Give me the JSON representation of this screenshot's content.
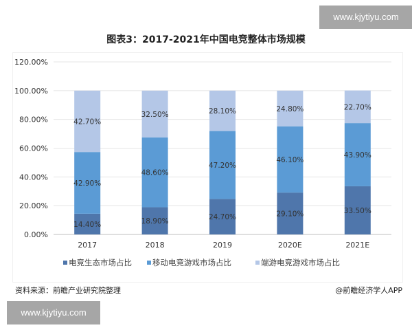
{
  "watermark_top": "www.kjytiyu.com",
  "watermark_bottom": "www.kjytiyu.com",
  "source": "资料来源：前瞻产业研究院整理",
  "credit": "@前瞻经济学人APP",
  "chart_data": {
    "type": "bar",
    "stacked": true,
    "title": "图表3：2017-2021年中国电竞整体市场规模",
    "categories": [
      "2017",
      "2018",
      "2019",
      "2020E",
      "2021E"
    ],
    "series": [
      {
        "name": "电竞生态市场占比",
        "values": [
          14.4,
          18.9,
          24.7,
          29.1,
          33.5
        ],
        "labels": [
          "14.40%",
          "18.90%",
          "24.70%",
          "29.10%",
          "33.50%"
        ],
        "color": "#4f76ab"
      },
      {
        "name": "移动电竞游戏市场占比",
        "values": [
          42.9,
          48.6,
          47.2,
          46.1,
          43.9
        ],
        "labels": [
          "42.90%",
          "48.60%",
          "47.20%",
          "46.10%",
          "43.90%"
        ],
        "color": "#5b9bd5"
      },
      {
        "name": "端游电竞游戏市场占比",
        "values": [
          42.7,
          32.5,
          28.1,
          24.8,
          22.7
        ],
        "labels": [
          "42.70%",
          "32.50%",
          "28.10%",
          "24.80%",
          "22.70%"
        ],
        "color": "#b4c7e7"
      }
    ],
    "ylim": [
      0,
      120
    ],
    "yticks": [
      "0.00%",
      "20.00%",
      "40.00%",
      "60.00%",
      "80.00%",
      "100.00%",
      "120.00%"
    ],
    "grid": true,
    "legend": "bottom"
  }
}
